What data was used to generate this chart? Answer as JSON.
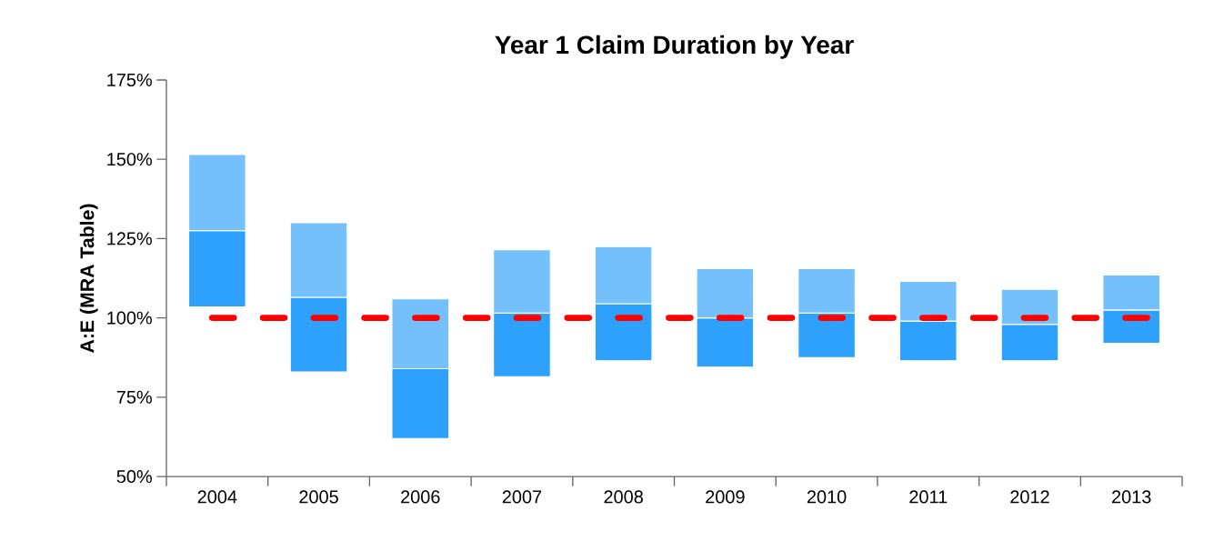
{
  "chart_data": {
    "type": "bar",
    "title": "Year 1 Claim Duration by Year",
    "ylabel": "A:E (MRA Table)",
    "categories": [
      "2004",
      "2005",
      "2006",
      "2007",
      "2008",
      "2009",
      "2010",
      "2011",
      "2012",
      "2013"
    ],
    "series": [
      {
        "color": "#2ea1fc",
        "base": [
          103.5,
          83,
          62,
          81.5,
          86.5,
          84.5,
          87.5,
          86.5,
          86.5,
          92
        ],
        "values": [
          24,
          23.5,
          22,
          20,
          18,
          15.5,
          14,
          12.5,
          11.5,
          10.5
        ]
      },
      {
        "color": "#74c0fc",
        "base": [
          127.5,
          106.5,
          84,
          101.5,
          104.5,
          100,
          101.5,
          99,
          98,
          102.5
        ],
        "values": [
          24,
          23.5,
          22,
          20,
          18,
          15.5,
          14,
          12.5,
          11,
          11
        ]
      }
    ],
    "ylim": [
      50,
      175
    ],
    "yticks": [
      {
        "value": 50,
        "label": "50%"
      },
      {
        "value": 75,
        "label": "75%"
      },
      {
        "value": 100,
        "label": "100%"
      },
      {
        "value": 125,
        "label": "125%"
      },
      {
        "value": 150,
        "label": "150%"
      },
      {
        "value": 175,
        "label": "175%"
      }
    ],
    "ref_lines": [
      {
        "axis": "y",
        "value": 100,
        "color": "#ff0000",
        "line_style": "dashed"
      }
    ]
  }
}
